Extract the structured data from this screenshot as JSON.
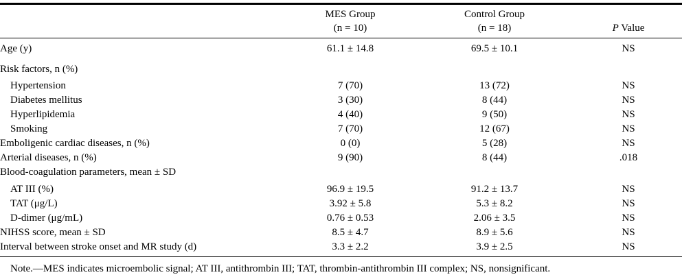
{
  "header": {
    "col1": {
      "line1": "MES Group",
      "line2": "(n = 10)"
    },
    "col2": {
      "line1": "Control Group",
      "line2": "(n = 18)"
    },
    "col3": {
      "italic": "P",
      "rest": " Value"
    }
  },
  "rows": [
    {
      "label": "Age (y)",
      "mes": "61.1 ± 14.8",
      "control": "69.5 ± 10.1",
      "p": "NS"
    },
    {
      "label": "Risk factors, n (%)",
      "mes": "",
      "control": "",
      "p": ""
    },
    {
      "label": "Hypertension",
      "mes": "7 (70)",
      "control": "13 (72)",
      "p": "NS"
    },
    {
      "label": "Diabetes mellitus",
      "mes": "3 (30)",
      "control": "8 (44)",
      "p": "NS"
    },
    {
      "label": "Hyperlipidemia",
      "mes": "4 (40)",
      "control": "9 (50)",
      "p": "NS"
    },
    {
      "label": "Smoking",
      "mes": "7 (70)",
      "control": "12 (67)",
      "p": "NS"
    },
    {
      "label": "Emboligenic cardiac diseases, n (%)",
      "mes": "0 (0)",
      "control": "5 (28)",
      "p": "NS"
    },
    {
      "label": "Arterial diseases, n (%)",
      "mes": "9 (90)",
      "control": "8 (44)",
      "p": ".018"
    },
    {
      "label": "Blood-coagulation parameters, mean ± SD",
      "mes": "",
      "control": "",
      "p": ""
    },
    {
      "label": "AT III (%)",
      "mes": "96.9 ± 19.5",
      "control": "91.2 ± 13.7",
      "p": "NS"
    },
    {
      "label": "TAT (μg/L)",
      "mes": "3.92 ± 5.8",
      "control": "5.3 ± 8.2",
      "p": "NS"
    },
    {
      "label": "D-dimer (μg/mL)",
      "mes": "0.76 ± 0.53",
      "control": "2.06 ± 3.5",
      "p": "NS"
    },
    {
      "label": "NIHSS score, mean ± SD",
      "mes": "8.5 ± 4.7",
      "control": "8.9 ± 5.6",
      "p": "NS"
    },
    {
      "label": "Interval between stroke onset and MR study (d)",
      "mes": "3.3 ± 2.2",
      "control": "3.9 ± 2.5",
      "p": "NS"
    }
  ],
  "note": "Note.—MES indicates microembolic signal; AT III, antithrombin III; TAT, thrombin-antithrombin III complex; NS, nonsignificant."
}
